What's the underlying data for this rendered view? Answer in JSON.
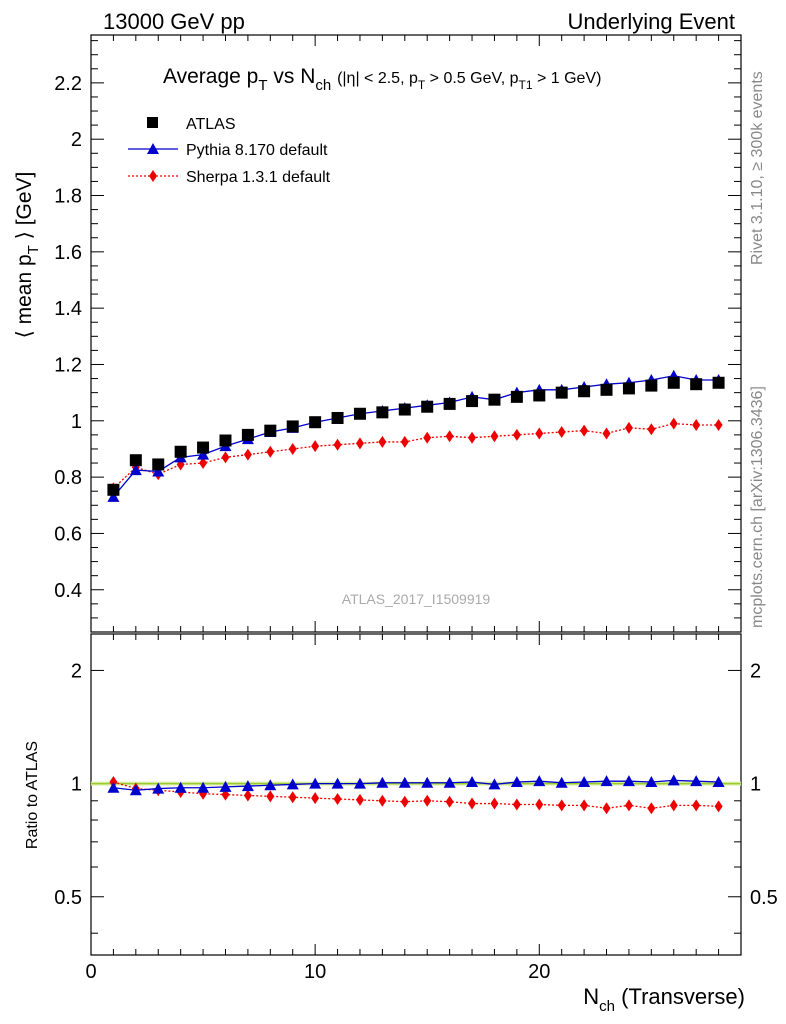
{
  "header": {
    "left": "13000 GeV pp",
    "right": "Underlying Event"
  },
  "side_labels": {
    "rivet": "Rivet 3.1.10, ≥ 300k events",
    "mcplots": "mcplots.cern.ch [arXiv:1306.3436]"
  },
  "watermark": "ATLAS_2017_I1509919",
  "colors": {
    "data": "#000000",
    "pythia": "#0000cc",
    "sherpa": "#ee0000",
    "reference_line": "#99cc33"
  },
  "chart_data": [
    {
      "type": "scatter",
      "title": "Average p_T vs N_ch (|η| < 2.5, p_T > 0.5 GeV, p_T1 > 1 GeV)",
      "ylabel": "⟨ mean p_T ⟩ [GeV]",
      "xlabel": "",
      "xlim": [
        0,
        29
      ],
      "ylim": [
        0.25,
        2.37
      ],
      "yticks": [
        "0.4",
        "0.6",
        "0.8",
        "1",
        "1.2",
        "1.4",
        "1.6",
        "1.8",
        "2",
        "2.2"
      ],
      "x": [
        1,
        2,
        3,
        4,
        5,
        6,
        7,
        8,
        9,
        10,
        11,
        12,
        13,
        14,
        15,
        16,
        17,
        18,
        19,
        20,
        21,
        22,
        23,
        24,
        25,
        26,
        27,
        28
      ],
      "legend": [
        "ATLAS",
        "Pythia 8.170 default",
        "Sherpa 1.3.1 default"
      ],
      "legend_position": "top-left",
      "series": [
        {
          "name": "ATLAS",
          "marker": "square",
          "values": [
            0.755,
            0.86,
            0.845,
            0.89,
            0.905,
            0.93,
            0.95,
            0.965,
            0.98,
            0.995,
            1.01,
            1.025,
            1.03,
            1.04,
            1.05,
            1.06,
            1.07,
            1.075,
            1.085,
            1.09,
            1.1,
            1.105,
            1.11,
            1.115,
            1.125,
            1.135,
            1.13,
            1.135
          ]
        },
        {
          "name": "Pythia 8.170 default",
          "marker": "triangle",
          "line": "solid",
          "values": [
            0.73,
            0.825,
            0.82,
            0.87,
            0.88,
            0.91,
            0.935,
            0.96,
            0.975,
            0.995,
            1.01,
            1.025,
            1.035,
            1.045,
            1.055,
            1.065,
            1.085,
            1.075,
            1.1,
            1.11,
            1.11,
            1.12,
            1.13,
            1.135,
            1.145,
            1.16,
            1.145,
            1.145
          ]
        },
        {
          "name": "Sherpa 1.3.1 default",
          "marker": "diamond",
          "line": "dotted",
          "values": [
            0.76,
            0.835,
            0.81,
            0.845,
            0.85,
            0.87,
            0.88,
            0.89,
            0.9,
            0.91,
            0.915,
            0.92,
            0.925,
            0.925,
            0.94,
            0.945,
            0.94,
            0.945,
            0.95,
            0.955,
            0.96,
            0.965,
            0.955,
            0.975,
            0.97,
            0.99,
            0.985,
            0.985
          ]
        }
      ]
    },
    {
      "type": "scatter",
      "title": "",
      "ylabel": "Ratio to ATLAS",
      "xlabel": "N_ch (Transverse)",
      "xlim": [
        0,
        29
      ],
      "ylim": [
        0.35,
        2.5
      ],
      "y_scale": "log",
      "yticks": [
        "0.5",
        "1",
        "2"
      ],
      "xticks": [
        "0",
        "10",
        "20"
      ],
      "reference_value": 1,
      "x": [
        1,
        2,
        3,
        4,
        5,
        6,
        7,
        8,
        9,
        10,
        11,
        12,
        13,
        14,
        15,
        16,
        17,
        18,
        19,
        20,
        21,
        22,
        23,
        24,
        25,
        26,
        27,
        28
      ],
      "series": [
        {
          "name": "Pythia 8.170 default",
          "marker": "triangle",
          "line": "solid",
          "values": [
            0.975,
            0.96,
            0.97,
            0.975,
            0.975,
            0.98,
            0.985,
            0.99,
            0.995,
            1.0,
            1.0,
            1.0,
            1.005,
            1.005,
            1.005,
            1.005,
            1.01,
            0.995,
            1.01,
            1.015,
            1.005,
            1.01,
            1.015,
            1.015,
            1.01,
            1.02,
            1.015,
            1.01
          ]
        },
        {
          "name": "Sherpa 1.3.1 default",
          "marker": "diamond",
          "line": "dotted",
          "values": [
            1.01,
            0.97,
            0.96,
            0.95,
            0.94,
            0.935,
            0.93,
            0.925,
            0.92,
            0.915,
            0.91,
            0.905,
            0.9,
            0.895,
            0.9,
            0.895,
            0.885,
            0.885,
            0.88,
            0.88,
            0.875,
            0.875,
            0.86,
            0.875,
            0.86,
            0.875,
            0.875,
            0.87
          ]
        }
      ]
    }
  ]
}
